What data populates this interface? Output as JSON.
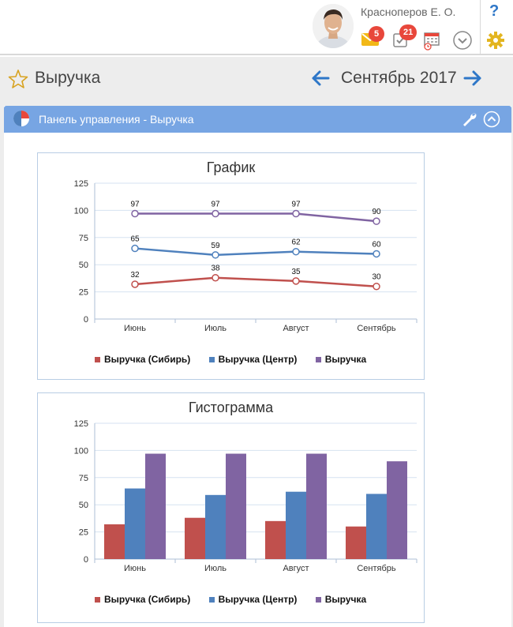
{
  "user": {
    "name": "Красноперов Е. О."
  },
  "notifications": {
    "messages_count": "5",
    "tasks_count": "21"
  },
  "help_label": "?",
  "page": {
    "title": "Выручка",
    "period": "Сентябрь 2017"
  },
  "panel": {
    "title": "Панель управления - Выручка"
  },
  "colors": {
    "series1": "#c0504d",
    "series2": "#4f81bd",
    "series3": "#8064a2",
    "panel_header": "#77a5e3",
    "accent": "#2e77c8"
  },
  "icons": [
    "star-icon",
    "arrow-left-icon",
    "arrow-right-icon",
    "pie-chart-icon",
    "wrench-icon",
    "collapse-icon",
    "mail-icon",
    "tasks-icon",
    "calendar-icon",
    "dropdown-icon",
    "settings-icon"
  ],
  "chart_data": [
    {
      "type": "line",
      "title": "График",
      "categories": [
        "Июнь",
        "Июль",
        "Август",
        "Сентябрь"
      ],
      "ylim": [
        0,
        125
      ],
      "yticks": [
        0,
        25,
        50,
        75,
        100,
        125
      ],
      "grid": true,
      "legend_position": "bottom",
      "series": [
        {
          "name": "Выручка (Сибирь)",
          "values": [
            32,
            38,
            35,
            30
          ]
        },
        {
          "name": "Выручка (Центр)",
          "values": [
            65,
            59,
            62,
            60
          ]
        },
        {
          "name": "Выручка",
          "values": [
            97,
            97,
            97,
            90
          ]
        }
      ]
    },
    {
      "type": "bar",
      "title": "Гистограмма",
      "categories": [
        "Июнь",
        "Июль",
        "Август",
        "Сентябрь"
      ],
      "ylim": [
        0,
        125
      ],
      "yticks": [
        0,
        25,
        50,
        75,
        100,
        125
      ],
      "grid": true,
      "legend_position": "bottom",
      "series": [
        {
          "name": "Выручка (Сибирь)",
          "values": [
            32,
            38,
            35,
            30
          ]
        },
        {
          "name": "Выручка (Центр)",
          "values": [
            65,
            59,
            62,
            60
          ]
        },
        {
          "name": "Выручка",
          "values": [
            97,
            97,
            97,
            90
          ]
        }
      ]
    }
  ]
}
